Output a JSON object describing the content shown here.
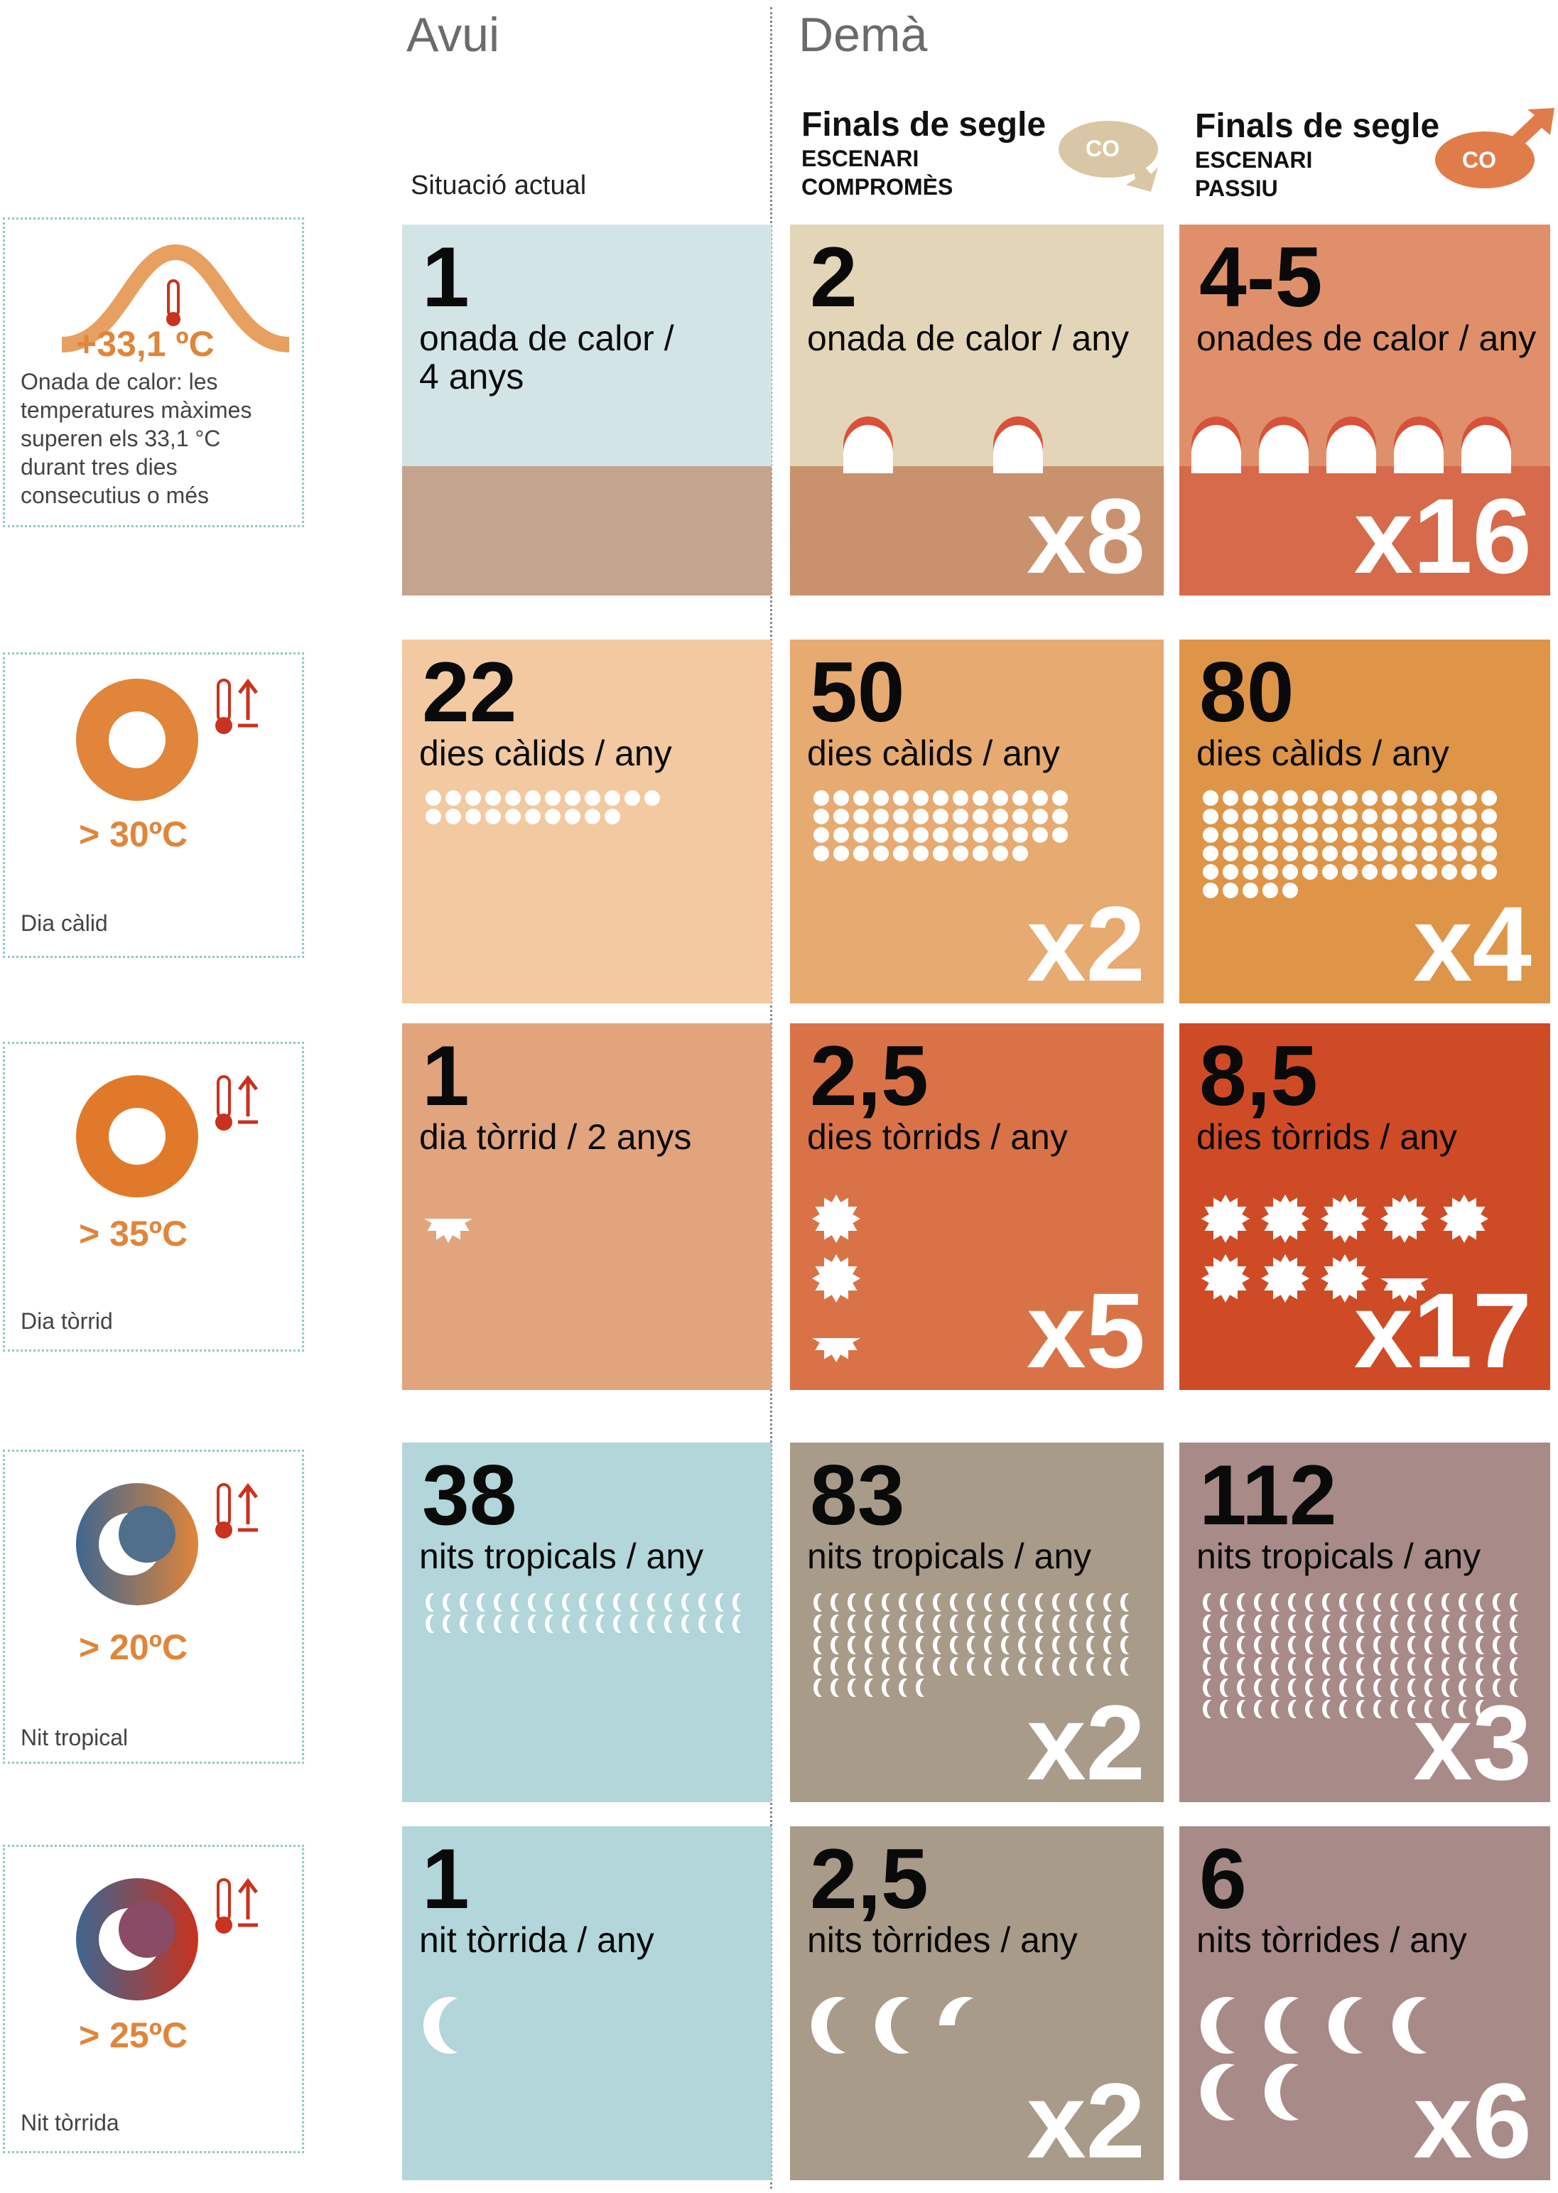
{
  "header": {
    "today": "Avui",
    "tomorrow": "Demà",
    "current": "Situació actual",
    "scenario_a_title": "Finals de segle",
    "scenario_a_sub1": "ESCENARI",
    "scenario_a_sub2": "COMPROMÈS",
    "scenario_b_title": "Finals de segle",
    "scenario_b_sub1": "ESCENARI",
    "scenario_b_sub2": "PASSIU",
    "co2": "CO₂"
  },
  "side": {
    "heatwave_temp": "+33,1 ºC",
    "heatwave_desc": [
      "Onada de calor: les",
      "temperatures màximes",
      "superen els 33,1 °C",
      "durant tres dies",
      "consecutius o més"
    ],
    "warm_temp": "> 30ºC",
    "warm_label": "Dia càlid",
    "torrid_temp": "> 35ºC",
    "torrid_label": "Dia tòrrid",
    "tropical_temp": "> 20ºC",
    "tropical_label": "Nit tropical",
    "torridnight_temp": "> 25ºC",
    "torridnight_label": "Nit tòrrida"
  },
  "rows": [
    {
      "cells": [
        {
          "num": "1",
          "label1": "onada de calor /",
          "label2": "4 anys",
          "mult": "",
          "color": "#d2e4e6"
        },
        {
          "num": "2",
          "label1": "onada de calor / any",
          "label2": "",
          "mult": "x8",
          "color": "#e3d5b8"
        },
        {
          "num": "4-5",
          "label1": "onades de calor / any",
          "label2": "",
          "mult": "x16",
          "color": "#df906a"
        }
      ]
    },
    {
      "cells": [
        {
          "num": "22",
          "label1": "dies càlids / any",
          "label2": "",
          "mult": "",
          "color": "#f2c9a0",
          "icon_count": 22
        },
        {
          "num": "50",
          "label1": "dies càlids / any",
          "label2": "",
          "mult": "x2",
          "color": "#e7aa70",
          "icon_count": 50
        },
        {
          "num": "80",
          "label1": "dies càlids / any",
          "label2": "",
          "mult": "x4",
          "color": "#de9548",
          "icon_count": 80
        }
      ]
    },
    {
      "cells": [
        {
          "num": "1",
          "label1": "dia tòrrid / 2 anys",
          "label2": "",
          "mult": "",
          "color": "#e2a47d",
          "icon_count": 0.5
        },
        {
          "num": "2,5",
          "label1": "dies tòrrids / any",
          "label2": "",
          "mult": "x5",
          "color": "#d97347",
          "icon_count": 2.5
        },
        {
          "num": "8,5",
          "label1": "dies tòrrids / any",
          "label2": "",
          "mult": "x17",
          "color": "#cf4b25",
          "icon_count": 8.5
        }
      ]
    },
    {
      "cells": [
        {
          "num": "38",
          "label1": "nits tropicals / any",
          "label2": "",
          "mult": "",
          "color": "#b2d6da",
          "icon_count": 38
        },
        {
          "num": "83",
          "label1": "nits tropicals / any",
          "label2": "",
          "mult": "x2",
          "color": "#a89b8a",
          "icon_count": 83
        },
        {
          "num": "112",
          "label1": "nits tropicals / any",
          "label2": "",
          "mult": "x3",
          "color": "#a88a89",
          "icon_count": 112
        }
      ]
    },
    {
      "cells": [
        {
          "num": "1",
          "label1": "nit tòrrida / any",
          "label2": "",
          "mult": "",
          "color": "#b2d6da",
          "icon_count": 1
        },
        {
          "num": "2,5",
          "label1": "nits tòrrides / any",
          "label2": "",
          "mult": "x2",
          "color": "#a89b8a",
          "icon_count": 2.5
        },
        {
          "num": "6",
          "label1": "nits tòrrides / any",
          "label2": "",
          "mult": "x6",
          "color": "#a88a89",
          "icon_count": 6
        }
      ]
    }
  ],
  "colors": {
    "accent_orange": "#e0853a",
    "teal": "#6fb7b4",
    "red": "#c8321e",
    "ground": "#c4a48c"
  }
}
